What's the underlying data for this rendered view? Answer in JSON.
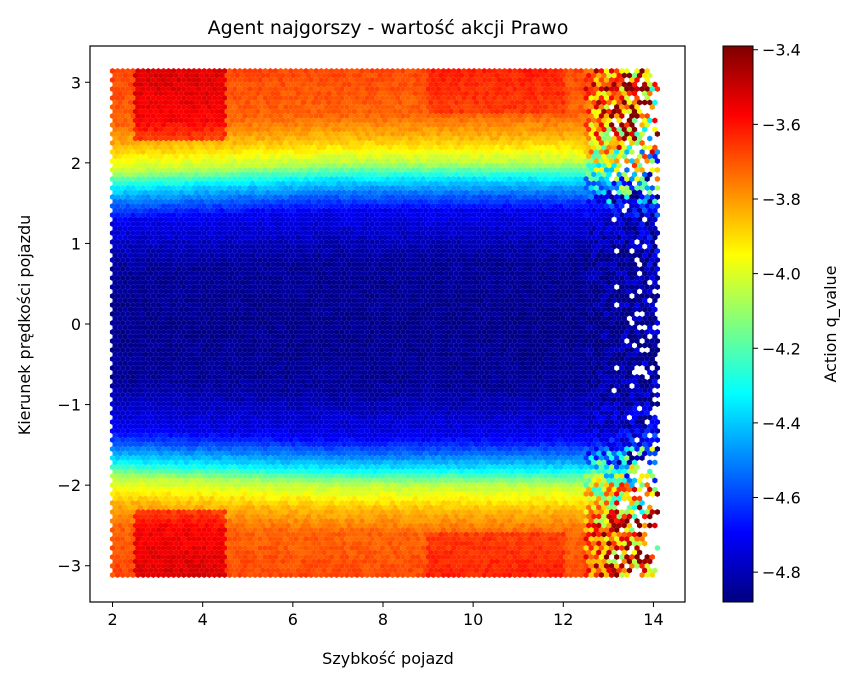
{
  "chart_data": {
    "type": "heatmap",
    "subtype": "hexbin",
    "title": "Agent najgorszy - wartość akcji Prawo",
    "xlabel": "Szybkość pojazd",
    "ylabel": "Kierunek prędkości pojazdu",
    "xlim": [
      1.5,
      14.7
    ],
    "ylim": [
      -3.45,
      3.45
    ],
    "x_range_data": [
      2.0,
      14.1
    ],
    "y_range_data": [
      -3.14,
      3.14
    ],
    "x_ticks": [
      2,
      4,
      6,
      8,
      10,
      12,
      14
    ],
    "y_ticks": [
      -3,
      -2,
      -1,
      0,
      1,
      2,
      3
    ],
    "colorbar": {
      "label": "Action q_value",
      "colormap": "jet",
      "min": -4.88,
      "max": -3.39,
      "ticks": [
        -3.4,
        -3.6,
        -3.8,
        -4.0,
        -4.2,
        -4.4,
        -4.6,
        -4.8
      ]
    },
    "value_model": {
      "description": "q_value approx. by direction |y|: lowest near 0, rising toward ±pi",
      "profile_abs_y": [
        0.0,
        0.8,
        1.4,
        1.6,
        1.8,
        2.0,
        2.3,
        2.6,
        3.14
      ],
      "profile_q": [
        -4.86,
        -4.84,
        -4.72,
        -4.55,
        -4.35,
        -4.05,
        -3.85,
        -3.72,
        -3.68
      ]
    },
    "colors": {
      "background": "#ffffff",
      "axes": "#000000"
    }
  }
}
